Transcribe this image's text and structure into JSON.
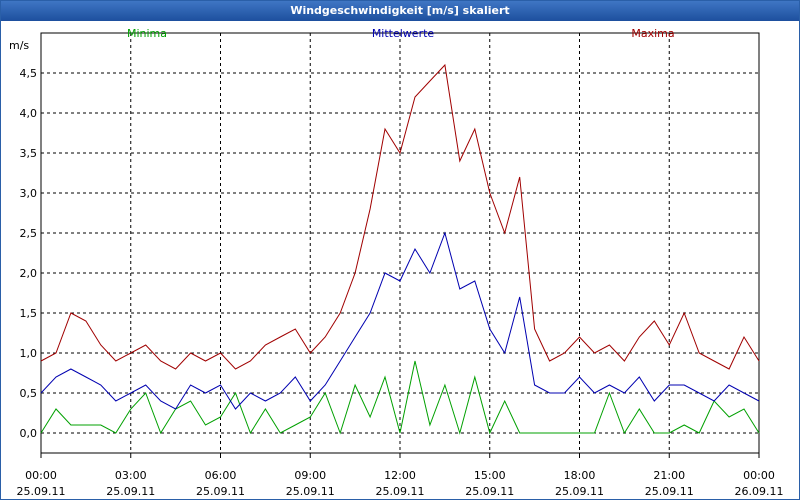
{
  "window": {
    "title": "Windgeschwindigkeit [m/s] skaliert"
  },
  "chart_data": {
    "type": "line",
    "title": "Windgeschwindigkeit [m/s] skaliert",
    "ylabel": "m/s",
    "xlabel": "",
    "ylim": [
      -0.25,
      5.0
    ],
    "xlim": [
      "25.09.11 00:00",
      "26.09.11 00:00"
    ],
    "grid": true,
    "legend_position": "top",
    "yticks": [
      "0,0",
      "0,5",
      "1,0",
      "1,5",
      "2,0",
      "2,5",
      "3,0",
      "3,5",
      "4,0",
      "4,5"
    ],
    "xticks": [
      {
        "time": "00:00",
        "date": "25.09.11"
      },
      {
        "time": "03:00",
        "date": "25.09.11"
      },
      {
        "time": "06:00",
        "date": "25.09.11"
      },
      {
        "time": "09:00",
        "date": "25.09.11"
      },
      {
        "time": "12:00",
        "date": "25.09.11"
      },
      {
        "time": "15:00",
        "date": "25.09.11"
      },
      {
        "time": "18:00",
        "date": "25.09.11"
      },
      {
        "time": "21:00",
        "date": "25.09.11"
      },
      {
        "time": "00:00",
        "date": "26.09.11"
      }
    ],
    "x_hours": [
      0,
      0.5,
      1,
      1.5,
      2,
      2.5,
      3,
      3.5,
      4,
      4.5,
      5,
      5.5,
      6,
      6.5,
      7,
      7.5,
      8,
      8.5,
      9,
      9.5,
      10,
      10.5,
      11,
      11.5,
      12,
      12.5,
      13,
      13.5,
      14,
      14.5,
      15,
      15.5,
      16,
      16.5,
      17,
      17.5,
      18,
      18.5,
      19,
      19.5,
      20,
      20.5,
      21,
      21.5,
      22,
      22.5,
      23,
      23.5,
      24
    ],
    "series": [
      {
        "name": "Minima",
        "color": "#00a000",
        "values": [
          0.0,
          0.3,
          0.1,
          0.1,
          0.1,
          0.0,
          0.3,
          0.5,
          0.0,
          0.3,
          0.4,
          0.1,
          0.2,
          0.5,
          0.0,
          0.3,
          0.0,
          0.1,
          0.2,
          0.5,
          0.0,
          0.6,
          0.2,
          0.7,
          0.0,
          0.9,
          0.1,
          0.6,
          0.0,
          0.7,
          0.0,
          0.4,
          0.0,
          0.0,
          0.0,
          0.0,
          0.0,
          0.0,
          0.5,
          0.0,
          0.3,
          0.0,
          0.0,
          0.1,
          0.0,
          0.4,
          0.2,
          0.3,
          0.0
        ]
      },
      {
        "name": "Mittelwerte",
        "color": "#0000b0",
        "values": [
          0.5,
          0.7,
          0.8,
          0.7,
          0.6,
          0.4,
          0.5,
          0.6,
          0.4,
          0.3,
          0.6,
          0.5,
          0.6,
          0.3,
          0.5,
          0.4,
          0.5,
          0.7,
          0.4,
          0.6,
          0.9,
          1.2,
          1.5,
          2.0,
          1.9,
          2.3,
          2.0,
          2.5,
          1.8,
          1.9,
          1.3,
          1.0,
          1.7,
          0.6,
          0.5,
          0.5,
          0.7,
          0.5,
          0.6,
          0.5,
          0.7,
          0.4,
          0.6,
          0.6,
          0.5,
          0.4,
          0.6,
          0.5,
          0.4
        ]
      },
      {
        "name": "Maxima",
        "color": "#a00000",
        "values": [
          0.9,
          1.0,
          1.5,
          1.4,
          1.1,
          0.9,
          1.0,
          1.1,
          0.9,
          0.8,
          1.0,
          0.9,
          1.0,
          0.8,
          0.9,
          1.1,
          1.2,
          1.3,
          1.0,
          1.2,
          1.5,
          2.0,
          2.8,
          3.8,
          3.5,
          4.2,
          4.4,
          4.6,
          3.4,
          3.8,
          3.0,
          2.5,
          3.2,
          1.3,
          0.9,
          1.0,
          1.2,
          1.0,
          1.1,
          0.9,
          1.2,
          1.4,
          1.1,
          1.5,
          1.0,
          0.9,
          0.8,
          1.2,
          0.9
        ]
      }
    ]
  }
}
